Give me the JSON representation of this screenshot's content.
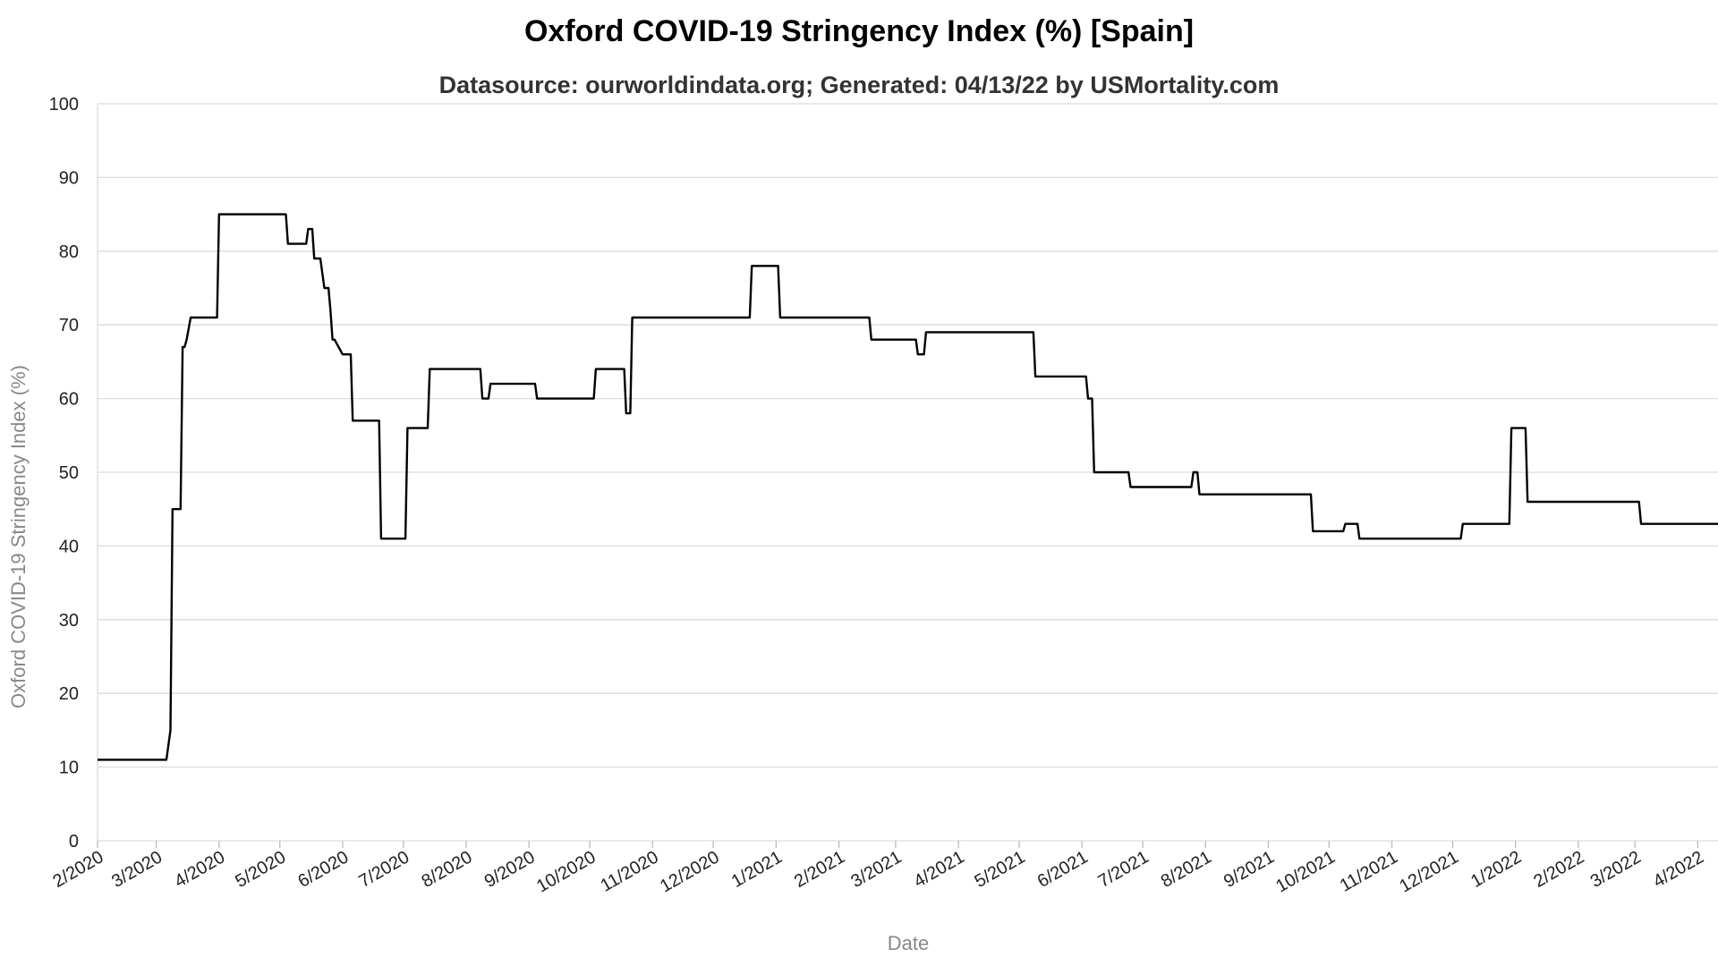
{
  "chart_data": {
    "type": "line",
    "title": "Oxford COVID-19 Stringency Index (%) [Spain]",
    "subtitle": "Datasource: ourworldindata.org; Generated: 04/13/22 by USMortality.com",
    "xlabel": "Date",
    "ylabel": "Oxford COVID-19 Stringency Index (%)",
    "ylim": [
      0,
      100
    ],
    "xlim": [
      "2020-02-01",
      "2022-04-11"
    ],
    "grid": true,
    "y_ticks": [
      0,
      10,
      20,
      30,
      40,
      50,
      60,
      70,
      80,
      90,
      100
    ],
    "x_ticks": [
      {
        "date": "2020-02-01",
        "label": "2/2020"
      },
      {
        "date": "2020-03-01",
        "label": "3/2020"
      },
      {
        "date": "2020-04-01",
        "label": "4/2020"
      },
      {
        "date": "2020-05-01",
        "label": "5/2020"
      },
      {
        "date": "2020-06-01",
        "label": "6/2020"
      },
      {
        "date": "2020-07-01",
        "label": "7/2020"
      },
      {
        "date": "2020-08-01",
        "label": "8/2020"
      },
      {
        "date": "2020-09-01",
        "label": "9/2020"
      },
      {
        "date": "2020-10-01",
        "label": "10/2020"
      },
      {
        "date": "2020-11-01",
        "label": "11/2020"
      },
      {
        "date": "2020-12-01",
        "label": "12/2020"
      },
      {
        "date": "2021-01-01",
        "label": "1/2021"
      },
      {
        "date": "2021-02-01",
        "label": "2/2021"
      },
      {
        "date": "2021-03-01",
        "label": "3/2021"
      },
      {
        "date": "2021-04-01",
        "label": "4/2021"
      },
      {
        "date": "2021-05-01",
        "label": "5/2021"
      },
      {
        "date": "2021-06-01",
        "label": "6/2021"
      },
      {
        "date": "2021-07-01",
        "label": "7/2021"
      },
      {
        "date": "2021-08-01",
        "label": "8/2021"
      },
      {
        "date": "2021-09-01",
        "label": "9/2021"
      },
      {
        "date": "2021-10-01",
        "label": "10/2021"
      },
      {
        "date": "2021-11-01",
        "label": "11/2021"
      },
      {
        "date": "2021-12-01",
        "label": "12/2021"
      },
      {
        "date": "2022-01-01",
        "label": "1/2022"
      },
      {
        "date": "2022-02-01",
        "label": "2/2022"
      },
      {
        "date": "2022-03-01",
        "label": "3/2022"
      },
      {
        "date": "2022-04-01",
        "label": "4/2022"
      }
    ],
    "line_color": "#000000",
    "series": [
      {
        "x": [
          "2020-02-01",
          "2020-03-06",
          "2020-03-08",
          "2020-03-09",
          "2020-03-10",
          "2020-03-11",
          "2020-03-13",
          "2020-03-14",
          "2020-03-15",
          "2020-03-16",
          "2020-03-18",
          "2020-03-31",
          "2020-04-01",
          "2020-05-04",
          "2020-05-05",
          "2020-05-14",
          "2020-05-15",
          "2020-05-17",
          "2020-05-18",
          "2020-05-20",
          "2020-05-21",
          "2020-05-23",
          "2020-05-24",
          "2020-05-25",
          "2020-05-26",
          "2020-05-27",
          "2020-05-28",
          "2020-06-01",
          "2020-06-05",
          "2020-06-06",
          "2020-06-07",
          "2020-06-19",
          "2020-06-20",
          "2020-07-02",
          "2020-07-03",
          "2020-07-13",
          "2020-07-14",
          "2020-08-08",
          "2020-08-09",
          "2020-08-12",
          "2020-08-13",
          "2020-09-04",
          "2020-09-05",
          "2020-10-03",
          "2020-10-04",
          "2020-10-18",
          "2020-10-19",
          "2020-10-21",
          "2020-10-22",
          "2020-12-19",
          "2020-12-20",
          "2021-01-02",
          "2021-01-03",
          "2021-02-16",
          "2021-02-17",
          "2021-03-11",
          "2021-03-12",
          "2021-03-15",
          "2021-03-16",
          "2021-05-08",
          "2021-05-09",
          "2021-06-03",
          "2021-06-04",
          "2021-06-06",
          "2021-06-07",
          "2021-06-24",
          "2021-06-25",
          "2021-07-25",
          "2021-07-26",
          "2021-07-28",
          "2021-07-29",
          "2021-09-22",
          "2021-09-23",
          "2021-10-08",
          "2021-10-09",
          "2021-10-15",
          "2021-10-16",
          "2021-12-05",
          "2021-12-06",
          "2021-12-29",
          "2021-12-30",
          "2022-01-06",
          "2022-01-07",
          "2022-03-03",
          "2022-03-04",
          "2022-04-11"
        ],
        "y": [
          11,
          11,
          15,
          45,
          45,
          45,
          45,
          67,
          67,
          68,
          71,
          71,
          85,
          85,
          81,
          81,
          83,
          83,
          79,
          79,
          79,
          75,
          75,
          75,
          72,
          68,
          68,
          66,
          66,
          57,
          57,
          57,
          41,
          41,
          56,
          56,
          64,
          64,
          60,
          60,
          62,
          62,
          60,
          60,
          64,
          64,
          58,
          58,
          71,
          71,
          78,
          78,
          71,
          71,
          68,
          68,
          66,
          66,
          69,
          69,
          63,
          63,
          60,
          60,
          50,
          50,
          48,
          48,
          50,
          50,
          47,
          47,
          42,
          42,
          43,
          43,
          41,
          41,
          43,
          43,
          56,
          56,
          46,
          46,
          43,
          43
        ]
      }
    ]
  }
}
